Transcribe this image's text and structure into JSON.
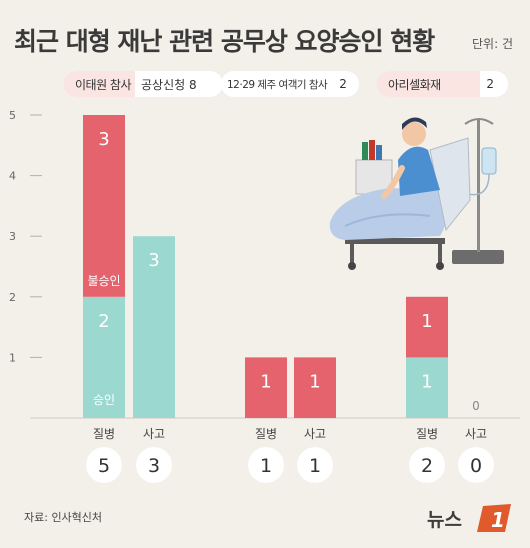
{
  "header": {
    "title": "최근 대형 재난 관련 공무상 요양승인 현황",
    "unit": "단위: 건"
  },
  "pills": [
    {
      "label": "이태원 참사",
      "value": "공상신청 8"
    },
    {
      "label": "12·29 제주 여객기 참사",
      "value": "2"
    },
    {
      "label": "아리셀화재",
      "value": "2"
    }
  ],
  "colors": {
    "approved": "#9ad8d0",
    "rejected": "#e5636c",
    "background": "#f3efe9",
    "circle": "#ffffff"
  },
  "chart_data": {
    "type": "bar",
    "stacked": true,
    "ylim": [
      0,
      5
    ],
    "yticks": [
      1,
      2,
      3,
      4,
      5
    ],
    "groups": [
      {
        "name": "이태원 참사",
        "categories": [
          "질병",
          "사고"
        ],
        "approved": [
          2,
          3
        ],
        "rejected": [
          3,
          0
        ],
        "totals": [
          5,
          3
        ]
      },
      {
        "name": "12·29 제주 여객기 참사",
        "categories": [
          "질병",
          "사고"
        ],
        "approved": [
          0,
          0
        ],
        "rejected": [
          1,
          1
        ],
        "totals": [
          1,
          1
        ]
      },
      {
        "name": "아리셀화재",
        "categories": [
          "질병",
          "사고"
        ],
        "approved": [
          1,
          0
        ],
        "rejected": [
          1,
          0
        ],
        "totals": [
          2,
          0
        ]
      }
    ],
    "labels": {
      "rejected": "불승인",
      "approved": "승인"
    },
    "zero_label": "0"
  },
  "footer": {
    "source": "자료: 인사혁신처",
    "logo_text": "뉴스",
    "logo_mark": "1"
  }
}
